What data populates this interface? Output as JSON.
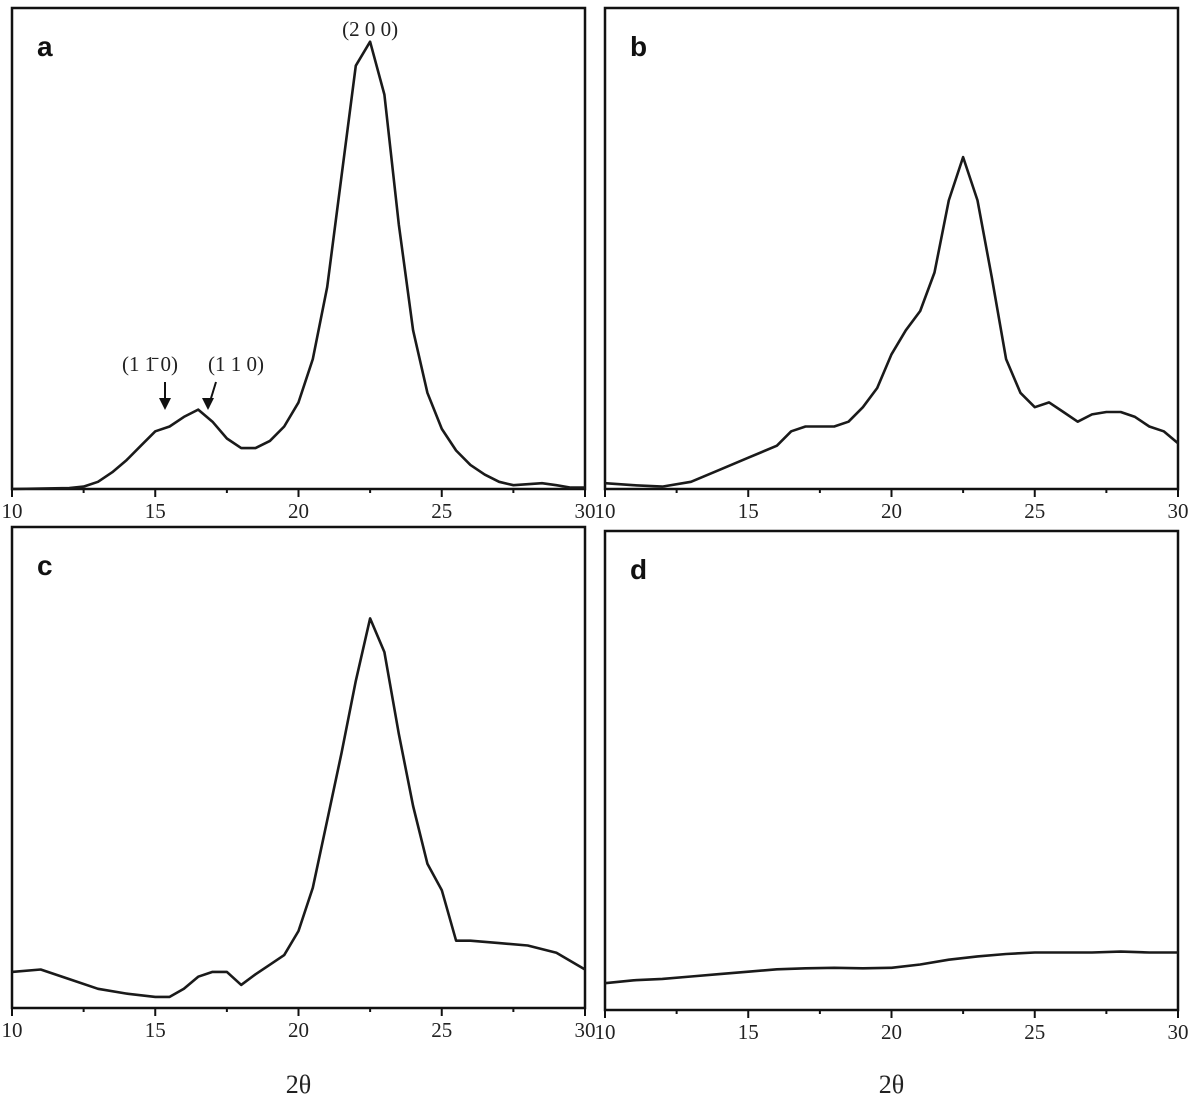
{
  "chart_data": [
    {
      "panel": "a",
      "type": "line",
      "xlabel": "",
      "xlim": [
        10,
        30
      ],
      "ylim": [
        0,
        100
      ],
      "xticks": [
        "10",
        "15",
        "20",
        "25",
        "30"
      ],
      "annotations": [
        {
          "text": "(2 0 0)",
          "x": 22.5
        },
        {
          "text": "(1 1̄ 0)",
          "x": 15.3,
          "arrow": true
        },
        {
          "text": "(1 1 0)",
          "x": 16.8,
          "arrow": true
        }
      ],
      "series": [
        {
          "x": [
            10,
            12,
            12.5,
            13,
            13.5,
            14,
            14.5,
            15,
            15.5,
            16,
            16.5,
            17,
            17.5,
            18,
            18.5,
            19,
            19.5,
            20,
            20.5,
            21,
            21.5,
            22,
            22.5,
            23,
            23.5,
            24,
            24.5,
            25,
            25.5,
            26,
            26.5,
            27,
            27.5,
            28,
            28.5,
            29,
            29.5,
            30
          ],
          "y": [
            0,
            0.2,
            0.5,
            1.5,
            3.5,
            6,
            9,
            12,
            13,
            15,
            16.5,
            14,
            10.5,
            8.5,
            8.5,
            10,
            13,
            18,
            27,
            42,
            65,
            88,
            93,
            82,
            55,
            33,
            20,
            12.5,
            8,
            5,
            3,
            1.5,
            0.8,
            1,
            1.2,
            0.8,
            0.3,
            0.3
          ]
        }
      ]
    },
    {
      "panel": "b",
      "type": "line",
      "xlabel": "",
      "xlim": [
        10,
        30
      ],
      "ylim": [
        0,
        100
      ],
      "xticks": [
        "10",
        "15",
        "20",
        "25",
        "30"
      ],
      "series": [
        {
          "x": [
            10,
            11,
            12,
            13,
            14,
            15,
            16,
            16.5,
            17,
            18,
            18.5,
            19,
            19.5,
            20,
            20.5,
            21,
            21.5,
            22,
            22.5,
            23,
            23.5,
            24,
            24.5,
            25,
            25.5,
            26,
            26.5,
            27,
            27.5,
            28,
            28.5,
            29,
            29.5,
            30
          ],
          "y": [
            1.2,
            0.8,
            0.5,
            1.5,
            4,
            6.5,
            9,
            12,
            13,
            13,
            14,
            17,
            21,
            28,
            33,
            37,
            45,
            60,
            69,
            60,
            44,
            27,
            20,
            17,
            18,
            16,
            14,
            15.5,
            16,
            16,
            15,
            13,
            12,
            9.5
          ]
        }
      ]
    },
    {
      "panel": "c",
      "type": "line",
      "xlabel": "2θ",
      "xlim": [
        10,
        30
      ],
      "ylim": [
        0,
        100
      ],
      "xticks": [
        "10",
        "15",
        "20",
        "25",
        "30"
      ],
      "series": [
        {
          "x": [
            10,
            11,
            12,
            13,
            14,
            15,
            15.5,
            16,
            16.5,
            17,
            17.5,
            18,
            18.5,
            19,
            19.5,
            20,
            20.5,
            21,
            21.5,
            22,
            22.5,
            23,
            23.5,
            24,
            24.5,
            25,
            25.5,
            26,
            27,
            28,
            29,
            30
          ],
          "y": [
            7.5,
            8,
            6,
            4,
            3,
            2.3,
            2.3,
            4,
            6.5,
            7.5,
            7.5,
            4.8,
            7,
            9,
            11,
            16,
            25,
            39,
            53,
            68,
            81,
            74,
            57,
            42,
            30,
            24.5,
            14,
            14,
            13.5,
            13,
            11.5,
            8
          ]
        }
      ]
    },
    {
      "panel": "d",
      "type": "line",
      "xlabel": "2θ",
      "xlim": [
        10,
        30
      ],
      "ylim": [
        0,
        100
      ],
      "xticks": [
        "10",
        "15",
        "20",
        "25",
        "30"
      ],
      "series": [
        {
          "x": [
            10,
            11,
            12,
            13,
            14,
            15,
            16,
            17,
            18,
            19,
            20,
            21,
            22,
            23,
            24,
            25,
            26,
            27,
            28,
            29,
            30
          ],
          "y": [
            5.6,
            6.2,
            6.5,
            7,
            7.5,
            8,
            8.5,
            8.7,
            8.8,
            8.7,
            8.8,
            9.5,
            10.5,
            11.2,
            11.7,
            12,
            12,
            12,
            12.2,
            12,
            12
          ]
        }
      ]
    }
  ]
}
